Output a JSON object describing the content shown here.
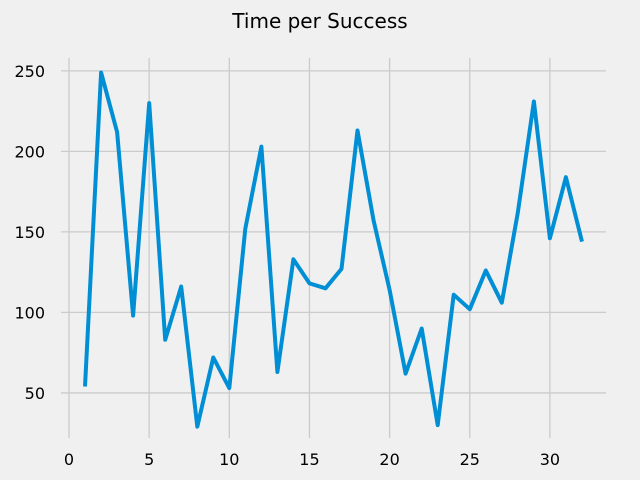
{
  "chart_data": {
    "type": "line",
    "title": "Time per Success",
    "xlabel": "",
    "ylabel": "",
    "xlim": [
      -0.5,
      33.5
    ],
    "ylim": [
      22,
      258
    ],
    "xticks": [
      0,
      5,
      10,
      15,
      20,
      25,
      30
    ],
    "yticks": [
      50,
      100,
      150,
      200,
      250
    ],
    "grid": true,
    "series": [
      {
        "color": "#008fd5",
        "x": [
          1,
          2,
          3,
          4,
          5,
          6,
          7,
          8,
          9,
          10,
          11,
          12,
          13,
          14,
          15,
          16,
          17,
          18,
          19,
          20,
          21,
          22,
          23,
          24,
          25,
          26,
          27,
          28,
          29,
          30,
          31,
          32
        ],
        "y": [
          54,
          249,
          212,
          98,
          230,
          83,
          116,
          29,
          72,
          53,
          152,
          203,
          63,
          133,
          118,
          115,
          127,
          213,
          157,
          114,
          62,
          90,
          30,
          111,
          102,
          126,
          106,
          162,
          231,
          146,
          184,
          144
        ]
      }
    ]
  }
}
